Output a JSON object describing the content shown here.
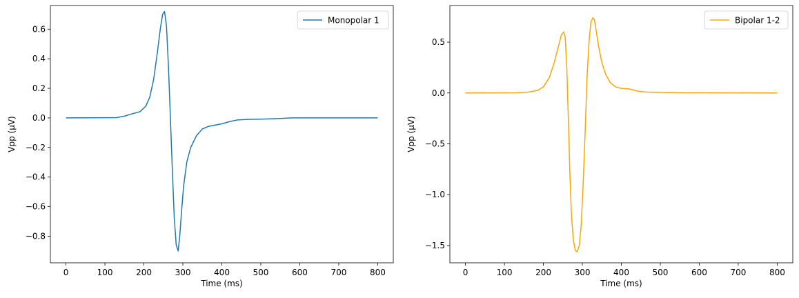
{
  "chart_data": [
    {
      "type": "line",
      "xlabel": "Time (ms)",
      "ylabel": "Vpp (µV)",
      "xlim": [
        -40,
        840
      ],
      "ylim": [
        -0.98,
        0.76
      ],
      "xticks": [
        0,
        100,
        200,
        300,
        400,
        500,
        600,
        700,
        800
      ],
      "xtick_labels": [
        "0",
        "100",
        "200",
        "300",
        "400",
        "500",
        "600",
        "700",
        "800"
      ],
      "yticks": [
        0.6,
        0.4,
        0.2,
        0.0,
        -0.2,
        -0.4,
        -0.6,
        -0.8
      ],
      "ytick_labels": [
        "0.6",
        "0.4",
        "0.2",
        "0.0",
        "−0.2",
        "−0.4",
        "−0.6",
        "−0.8"
      ],
      "legend_position": "top-right",
      "series": [
        {
          "name": "Monopolar 1",
          "color": "#1f77b4",
          "x": [
            0,
            130,
            150,
            170,
            190,
            205,
            215,
            225,
            235,
            242,
            248,
            253,
            258,
            263,
            268,
            273,
            278,
            283,
            288,
            292,
            297,
            302,
            310,
            320,
            335,
            350,
            365,
            380,
            400,
            420,
            440,
            470,
            520,
            550,
            580,
            650,
            700,
            800
          ],
          "y": [
            0.0,
            0.002,
            0.012,
            0.028,
            0.042,
            0.08,
            0.14,
            0.26,
            0.45,
            0.6,
            0.7,
            0.72,
            0.62,
            0.35,
            0.0,
            -0.35,
            -0.68,
            -0.86,
            -0.9,
            -0.8,
            -0.62,
            -0.46,
            -0.3,
            -0.2,
            -0.12,
            -0.075,
            -0.058,
            -0.05,
            -0.04,
            -0.025,
            -0.014,
            -0.01,
            -0.007,
            -0.004,
            0.0,
            0.0,
            0.0,
            0.0
          ]
        }
      ]
    },
    {
      "type": "line",
      "xlabel": "Time (ms)",
      "ylabel": "Vpp (µV)",
      "xlim": [
        -40,
        840
      ],
      "ylim": [
        -1.67,
        0.86
      ],
      "xticks": [
        0,
        100,
        200,
        300,
        400,
        500,
        600,
        700,
        800
      ],
      "xtick_labels": [
        "0",
        "100",
        "200",
        "300",
        "400",
        "500",
        "600",
        "700",
        "800"
      ],
      "yticks": [
        0.5,
        0.0,
        -0.5,
        -1.0,
        -1.5
      ],
      "ytick_labels": [
        "0.5",
        "0.0",
        "−0.5",
        "−1.0",
        "−1.5"
      ],
      "legend_position": "top-right",
      "series": [
        {
          "name": "Bipolar 1-2",
          "color": "#ffa500",
          "x": [
            0,
            130,
            160,
            185,
            200,
            215,
            228,
            238,
            246,
            252,
            256,
            260,
            264,
            268,
            272,
            277,
            282,
            287,
            292,
            297,
            302,
            307,
            312,
            317,
            322,
            327,
            331,
            336,
            342,
            350,
            360,
            372,
            385,
            400,
            420,
            440,
            460,
            500,
            560,
            800
          ],
          "y": [
            0.0,
            0.002,
            0.008,
            0.025,
            0.06,
            0.15,
            0.3,
            0.45,
            0.57,
            0.6,
            0.55,
            0.25,
            -0.25,
            -0.8,
            -1.2,
            -1.45,
            -1.55,
            -1.56,
            -1.5,
            -1.3,
            -0.9,
            -0.4,
            0.15,
            0.5,
            0.7,
            0.74,
            0.72,
            0.6,
            0.45,
            0.3,
            0.18,
            0.1,
            0.06,
            0.045,
            0.04,
            0.02,
            0.01,
            0.005,
            0.002,
            0.0
          ]
        }
      ]
    }
  ]
}
